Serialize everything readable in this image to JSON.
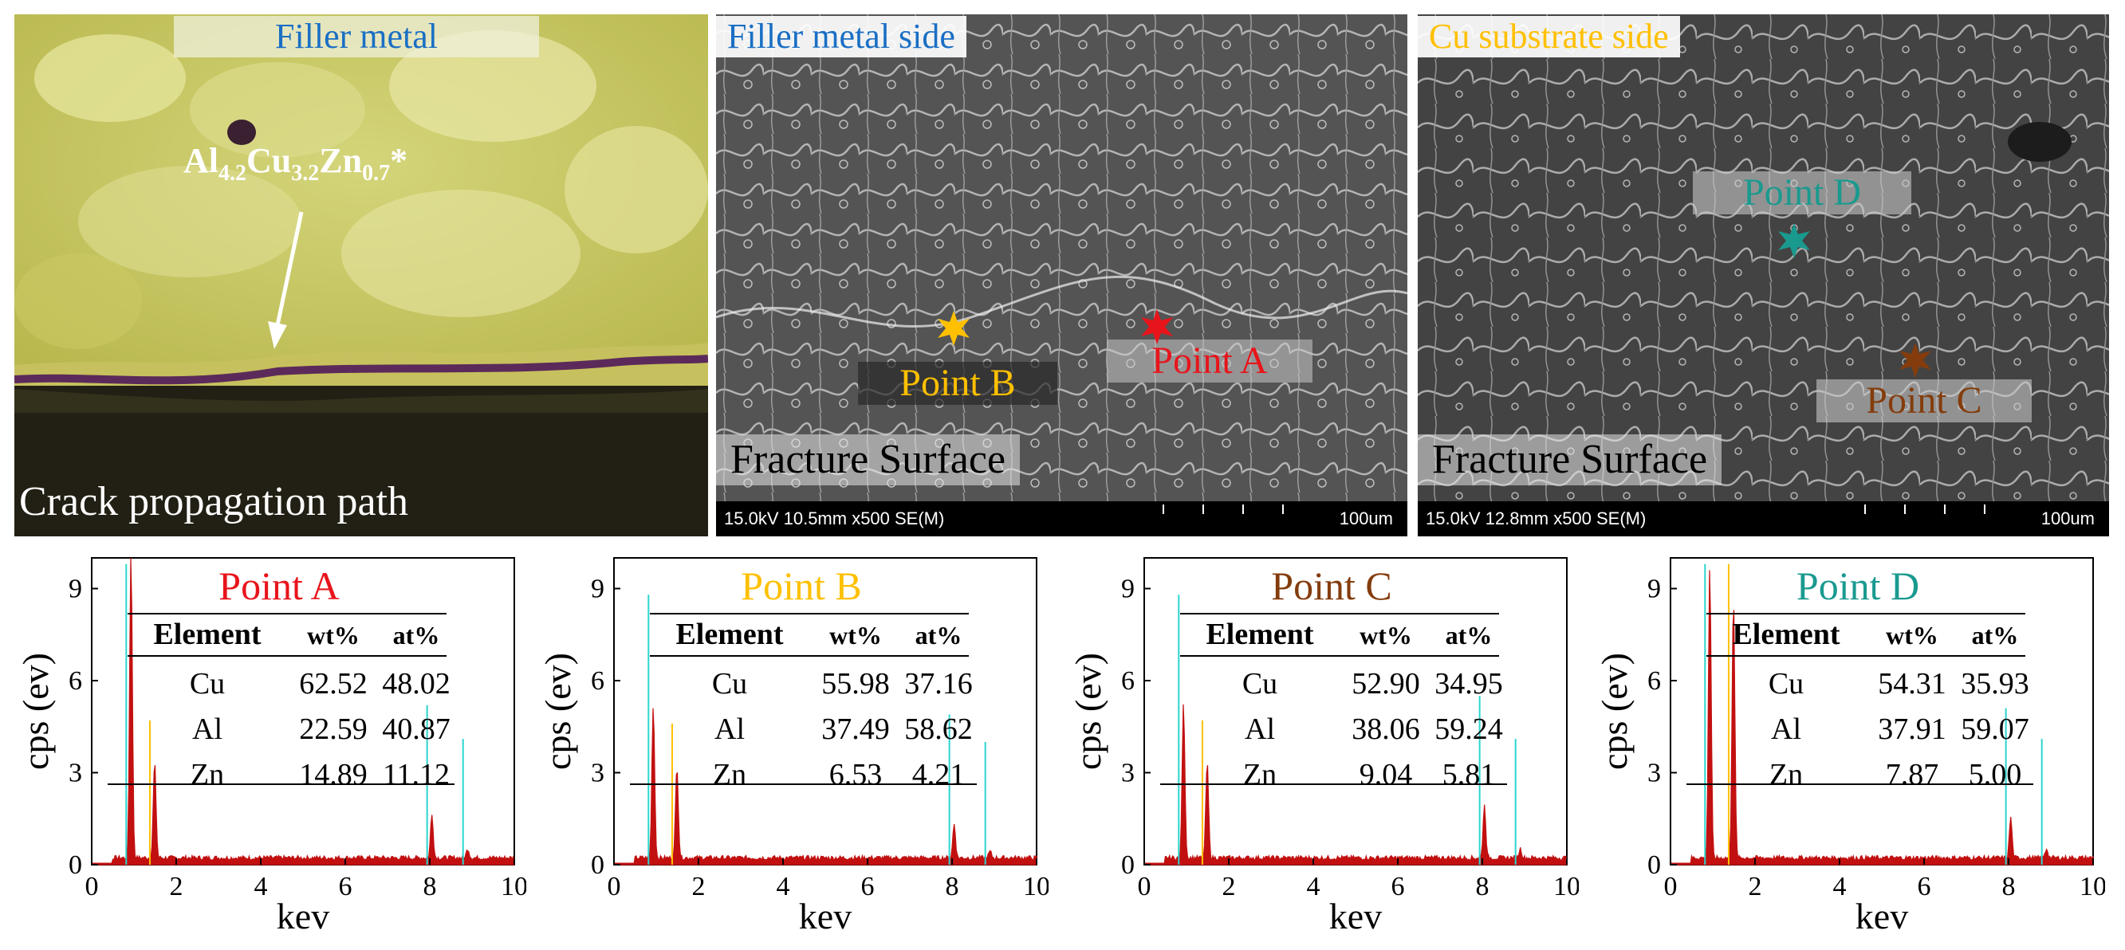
{
  "colors": {
    "point_a": "#e8141b",
    "point_b": "#ffc000",
    "point_c": "#843c0c",
    "point_d": "#1a9a8f",
    "filler_label": "#1a6fc4",
    "cu_label": "#ffc000",
    "spectrum_red": "#c21010",
    "spectrum_cyan": "#2bd6cf"
  },
  "optical": {
    "title": "Filler metal",
    "phase_main": "Al",
    "phase_sub1": "4.2",
    "phase_el2": "Cu",
    "phase_sub2": "3.2",
    "phase_el3": "Zn",
    "phase_sub3": "0.7",
    "phase_star": "*",
    "caption": "Crack propagation path"
  },
  "sem_filler": {
    "title": "Filler metal side",
    "fracture": "Fracture Surface",
    "info": "15.0kV 10.5mm x500 SE(M)",
    "scale": "100um",
    "point_a": "Point A",
    "point_b": "Point B"
  },
  "sem_cu": {
    "title": "Cu substrate side",
    "fracture": "Fracture Surface",
    "info": "15.0kV 12.8mm x500 SE(M)",
    "scale": "100um",
    "point_c": "Point C",
    "point_d": "Point D"
  },
  "chart_data": [
    {
      "type": "line",
      "title": "Point A",
      "xlabel": "kev",
      "ylabel": "cps (ev)",
      "xlim": [
        0,
        10
      ],
      "ylim": [
        0,
        10
      ],
      "xticks": [
        "0",
        "2",
        "4",
        "6",
        "8",
        "10"
      ],
      "yticks": [
        "0",
        "3",
        "6",
        "9"
      ],
      "peaks": [
        {
          "x": 0.93,
          "y": 10.0
        },
        {
          "x": 1.49,
          "y": 3.1
        },
        {
          "x": 8.05,
          "y": 1.4
        },
        {
          "x": 8.9,
          "y": 0.3
        }
      ],
      "table": {
        "headers": [
          "Element",
          "wt%",
          "at%"
        ],
        "rows": [
          [
            "Cu",
            "62.52",
            "48.02"
          ],
          [
            "Al",
            "22.59",
            "40.87"
          ],
          [
            "Zn",
            "14.89",
            "11.12"
          ]
        ]
      }
    },
    {
      "type": "line",
      "title": "Point B",
      "xlabel": "kev",
      "ylabel": "cps (ev)",
      "xlim": [
        0,
        10
      ],
      "ylim": [
        0,
        10
      ],
      "xticks": [
        "0",
        "2",
        "4",
        "6",
        "8",
        "10"
      ],
      "yticks": [
        "0",
        "3",
        "6",
        "9"
      ],
      "peaks": [
        {
          "x": 0.93,
          "y": 5.0
        },
        {
          "x": 1.49,
          "y": 3.0
        },
        {
          "x": 8.05,
          "y": 1.1
        },
        {
          "x": 8.9,
          "y": 0.2
        }
      ],
      "table": {
        "headers": [
          "Element",
          "wt%",
          "at%"
        ],
        "rows": [
          [
            "Cu",
            "55.98",
            "37.16"
          ],
          [
            "Al",
            "37.49",
            "58.62"
          ],
          [
            "Zn",
            "6.53",
            "4.21"
          ]
        ]
      }
    },
    {
      "type": "line",
      "title": "Point C",
      "xlabel": "kev",
      "ylabel": "cps (ev)",
      "xlim": [
        0,
        10
      ],
      "ylim": [
        0,
        10
      ],
      "xticks": [
        "0",
        "2",
        "4",
        "6",
        "8",
        "10"
      ],
      "yticks": [
        "0",
        "3",
        "6",
        "9"
      ],
      "peaks": [
        {
          "x": 0.93,
          "y": 5.0
        },
        {
          "x": 1.49,
          "y": 3.1
        },
        {
          "x": 8.05,
          "y": 1.7
        },
        {
          "x": 8.9,
          "y": 0.3
        }
      ],
      "table": {
        "headers": [
          "Element",
          "wt%",
          "at%"
        ],
        "rows": [
          [
            "Cu",
            "52.90",
            "34.95"
          ],
          [
            "Al",
            "38.06",
            "59.24"
          ],
          [
            "Zn",
            "9.04",
            "5.81"
          ]
        ]
      }
    },
    {
      "type": "line",
      "title": "Point D",
      "xlabel": "kev",
      "ylabel": "cps (ev)",
      "xlim": [
        0,
        10
      ],
      "ylim": [
        0,
        10
      ],
      "xticks": [
        "0",
        "2",
        "4",
        "6",
        "8",
        "10"
      ],
      "yticks": [
        "0",
        "3",
        "6",
        "9"
      ],
      "peaks": [
        {
          "x": 0.93,
          "y": 9.5
        },
        {
          "x": 1.49,
          "y": 8.5
        },
        {
          "x": 8.05,
          "y": 1.3
        },
        {
          "x": 8.9,
          "y": 0.3
        }
      ],
      "table": {
        "headers": [
          "Element",
          "wt%",
          "at%"
        ],
        "rows": [
          [
            "Cu",
            "54.31",
            "35.93"
          ],
          [
            "Al",
            "37.91",
            "59.07"
          ],
          [
            "Zn",
            "7.87",
            "5.00"
          ]
        ]
      }
    }
  ]
}
